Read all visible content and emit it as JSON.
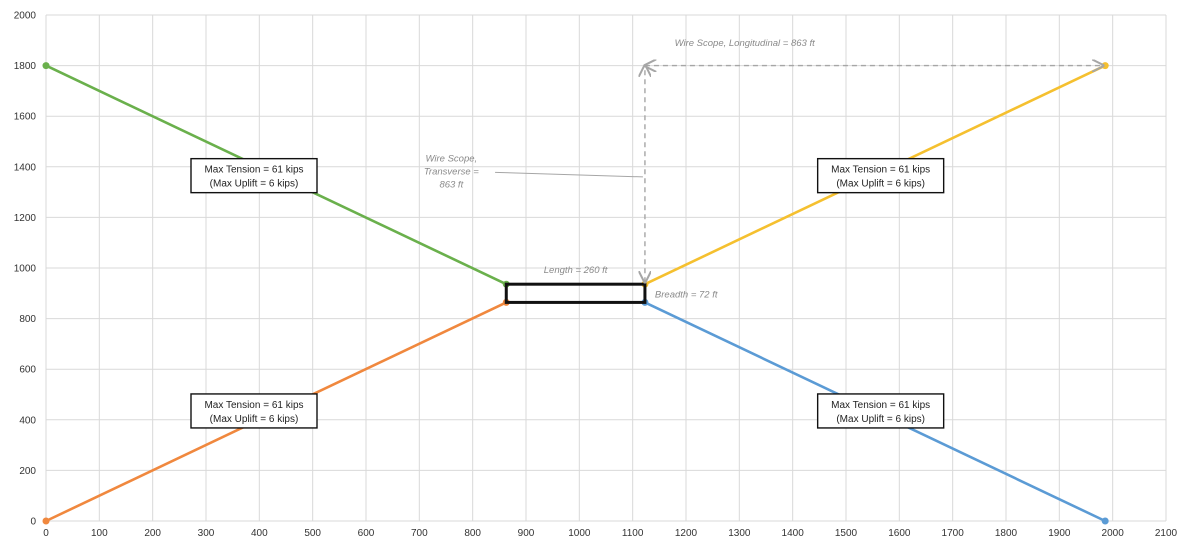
{
  "chart_data": {
    "type": "scatter",
    "title": "",
    "xlabel": "",
    "ylabel": "",
    "xlim": [
      0,
      2100
    ],
    "ylim": [
      0,
      2000
    ],
    "x_ticks": [
      0,
      100,
      200,
      300,
      400,
      500,
      600,
      700,
      800,
      900,
      1000,
      1100,
      1200,
      1300,
      1400,
      1500,
      1600,
      1700,
      1800,
      1900,
      2000,
      2100
    ],
    "y_ticks": [
      0,
      200,
      400,
      600,
      800,
      1000,
      1200,
      1400,
      1600,
      1800,
      2000
    ],
    "grid": true,
    "colors": {
      "green": "#6ab04c",
      "orange": "#f0883e",
      "yellow": "#f5c02f",
      "blue": "#5b9bd5",
      "grid": "#d9d9d9",
      "annotation": "#a6a6a6"
    },
    "series": [
      {
        "color": "#6ab04c",
        "x": [
          0,
          863
        ],
        "y": [
          1800,
          936
        ]
      },
      {
        "color": "#f0883e",
        "x": [
          0,
          863
        ],
        "y": [
          0,
          864
        ]
      },
      {
        "color": "#f5c02f",
        "x": [
          1123,
          1986
        ],
        "y": [
          936,
          1800
        ]
      },
      {
        "color": "#5b9bd5",
        "x": [
          1123,
          1986
        ],
        "y": [
          864,
          0
        ]
      }
    ],
    "rectangle": {
      "x": [
        863,
        1123
      ],
      "y": [
        864,
        936
      ]
    },
    "tension_boxes": [
      {
        "line1": "Max Tension = 61 kips",
        "line2": "(Max Uplift = 6 kips)",
        "x": 390,
        "y": 1365
      },
      {
        "line1": "Max Tension = 61 kips",
        "line2": "(Max Uplift = 6 kips)",
        "x": 1565,
        "y": 1365
      },
      {
        "line1": "Max Tension = 61 kips",
        "line2": "(Max Uplift = 6 kips)",
        "x": 390,
        "y": 435
      },
      {
        "line1": "Max Tension = 61 kips",
        "line2": "(Max Uplift = 6 kips)",
        "x": 1565,
        "y": 435
      }
    ],
    "annotations": {
      "length": "Length = 260 ft",
      "breadth": "Breadth = 72 ft",
      "wire_transverse": [
        "Wire Scope,",
        "Transverse =",
        "863 ft"
      ],
      "wire_longitudinal": "Wire Scope, Longitudinal = 863 ft"
    }
  }
}
